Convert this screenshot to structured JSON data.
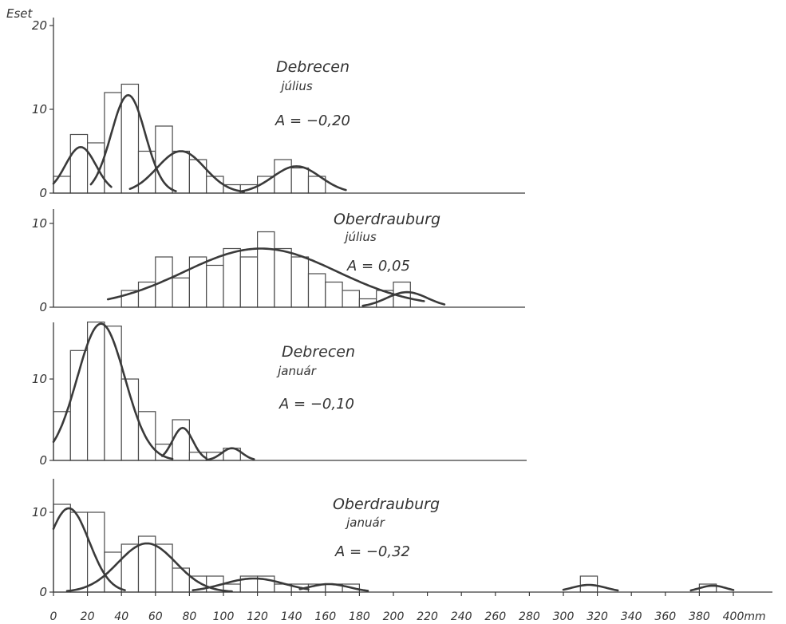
{
  "chart_data": {
    "type": "bar",
    "ylabel": "Eset",
    "xlabel": "",
    "x_unit": "mm",
    "x_ticks": [
      0,
      20,
      40,
      60,
      80,
      100,
      120,
      140,
      160,
      180,
      200,
      220,
      240,
      260,
      280,
      300,
      320,
      340,
      360,
      380,
      400
    ],
    "bin_width": 10,
    "panels": [
      {
        "title": "Debrecen",
        "subtitle": "július",
        "annotation": "A = −0,20",
        "ylim": [
          0,
          20
        ],
        "y_ticks": [
          0,
          10,
          20
        ],
        "bin_starts": [
          0,
          10,
          20,
          30,
          40,
          50,
          60,
          70,
          80,
          90,
          100,
          110,
          120,
          130,
          140,
          150,
          160
        ],
        "values": [
          2,
          7,
          6,
          12,
          13,
          5,
          8,
          5,
          4,
          2,
          1,
          1,
          2,
          4,
          3,
          2,
          0
        ],
        "curves": [
          {
            "mean": 16,
            "sd": 9,
            "peak": 5.5,
            "range": [
              0,
              34
            ]
          },
          {
            "mean": 44,
            "sd": 10,
            "peak": 11.7,
            "range": [
              22,
              72
            ]
          },
          {
            "mean": 75,
            "sd": 14,
            "peak": 5.0,
            "range": [
              45,
              112
            ]
          },
          {
            "mean": 143,
            "sd": 14,
            "peak": 3.2,
            "range": [
              110,
              172
            ]
          }
        ]
      },
      {
        "title": "Oberdrauburg",
        "subtitle": "július",
        "annotation": "A = 0,05",
        "ylim": [
          0,
          10
        ],
        "y_ticks": [
          0,
          10
        ],
        "bin_starts": [
          40,
          50,
          60,
          70,
          80,
          90,
          100,
          110,
          120,
          130,
          140,
          150,
          160,
          170,
          180,
          190,
          200
        ],
        "values": [
          2,
          3,
          6,
          3.5,
          6,
          5,
          7,
          6,
          9,
          7,
          6,
          4,
          3,
          2,
          1,
          2,
          3
        ],
        "curves": [
          {
            "mean": 122,
            "sd": 45,
            "peak": 7.0,
            "range": [
              32,
              218
            ]
          },
          {
            "mean": 208,
            "sd": 12,
            "peak": 1.8,
            "range": [
              182,
              230
            ]
          }
        ]
      },
      {
        "title": "Debrecen",
        "subtitle": "január",
        "annotation": "A = −0,10",
        "ylim": [
          0,
          17
        ],
        "y_ticks": [
          0,
          10
        ],
        "bin_starts": [
          0,
          10,
          20,
          30,
          40,
          50,
          60,
          70,
          80,
          90,
          100,
          110
        ],
        "values": [
          6,
          13.5,
          17,
          16.5,
          10,
          6,
          2,
          5,
          1,
          1,
          1.5,
          0
        ],
        "curves": [
          {
            "mean": 28,
            "sd": 14,
            "peak": 16.8,
            "range": [
              0,
              70
            ]
          },
          {
            "mean": 76,
            "sd": 6,
            "peak": 4.0,
            "range": [
              64,
              90
            ]
          },
          {
            "mean": 105,
            "sd": 6,
            "peak": 1.5,
            "range": [
              90,
              118
            ]
          }
        ]
      },
      {
        "title": "Oberdrauburg",
        "subtitle": "január",
        "annotation": "A = −0,32",
        "ylim": [
          0,
          13
        ],
        "y_ticks": [
          0,
          10
        ],
        "bin_starts": [
          0,
          10,
          20,
          30,
          40,
          50,
          60,
          70,
          80,
          90,
          100,
          110,
          120,
          130,
          140,
          150,
          160,
          170,
          310,
          380
        ],
        "values": [
          11,
          10,
          10,
          5,
          6,
          7,
          6,
          3,
          2,
          2,
          1,
          2,
          2,
          1,
          1,
          1,
          1,
          1,
          2,
          1
        ],
        "curves": [
          {
            "mean": 9,
            "sd": 12,
            "peak": 10.5,
            "range": [
              0,
              42
            ]
          },
          {
            "mean": 55,
            "sd": 17,
            "peak": 6.1,
            "range": [
              8,
              105
            ]
          },
          {
            "mean": 118,
            "sd": 18,
            "peak": 1.7,
            "range": [
              82,
              150
            ]
          },
          {
            "mean": 162,
            "sd": 12,
            "peak": 1.0,
            "range": [
              145,
              185
            ]
          },
          {
            "mean": 315,
            "sd": 10,
            "peak": 0.9,
            "range": [
              300,
              332
            ]
          },
          {
            "mean": 388,
            "sd": 8,
            "peak": 0.8,
            "range": [
              375,
              400
            ]
          }
        ]
      }
    ]
  }
}
